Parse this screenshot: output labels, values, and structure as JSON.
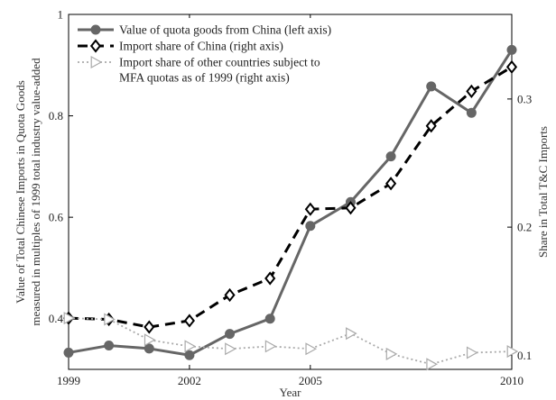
{
  "chart_data": {
    "type": "line",
    "x": [
      1999,
      2000,
      2001,
      2002,
      2003,
      2004,
      2005,
      2006,
      2007,
      2008,
      2009,
      2010
    ],
    "xlabel": "Year",
    "xlim": [
      1999,
      2010
    ],
    "xticks": [
      1999,
      2002,
      2005,
      2010
    ],
    "ylabel_left": "Value of Total Chinese Imports in Quota Goods measured in multiples of 1999 total industry value-added",
    "ylabel_left_lines": [
      "Value of Total Chinese Imports in Quota Goods",
      "measured in multiples of 1999 total industry value-added"
    ],
    "ylim_left": [
      0.3,
      1.0
    ],
    "yticks_left": [
      "1",
      "0.8",
      "0.6",
      "0.4"
    ],
    "ylabel_right": "Share in Total T&C Imports",
    "ylim_right": [
      0.089,
      0.366
    ],
    "yticks_right": [
      "0.3",
      "0.2",
      "0.1"
    ],
    "grid": false,
    "legend_placement": "top-left",
    "series": [
      {
        "name": "Value of quota goods from China (left axis)",
        "legend_lines": [
          "Value of quota goods from China (left axis)"
        ],
        "axis": "left",
        "style": "solid-circle",
        "color": "#666666",
        "values": [
          0.333,
          0.347,
          0.341,
          0.328,
          0.37,
          0.4,
          0.583,
          0.63,
          0.72,
          0.858,
          0.806,
          0.93
        ]
      },
      {
        "name": "Import share of China (right axis)",
        "legend_lines": [
          "Import share of China (right axis)"
        ],
        "axis": "right",
        "style": "dashed-diamond",
        "color": "#000000",
        "values": [
          0.129,
          0.128,
          0.122,
          0.127,
          0.147,
          0.16,
          0.214,
          0.215,
          0.234,
          0.279,
          0.306,
          0.325
        ]
      },
      {
        "name": "Import share of other countries subject to MFA quotas as of 1999 (right axis)",
        "legend_lines": [
          "Import share of other countries subject to",
          "MFA quotas as of 1999 (right axis)"
        ],
        "axis": "right",
        "style": "dotted-triangle",
        "color": "#aaaaaa",
        "values": [
          0.129,
          0.128,
          0.112,
          0.107,
          0.105,
          0.107,
          0.105,
          0.117,
          0.101,
          0.093,
          0.102,
          0.103
        ]
      }
    ]
  }
}
